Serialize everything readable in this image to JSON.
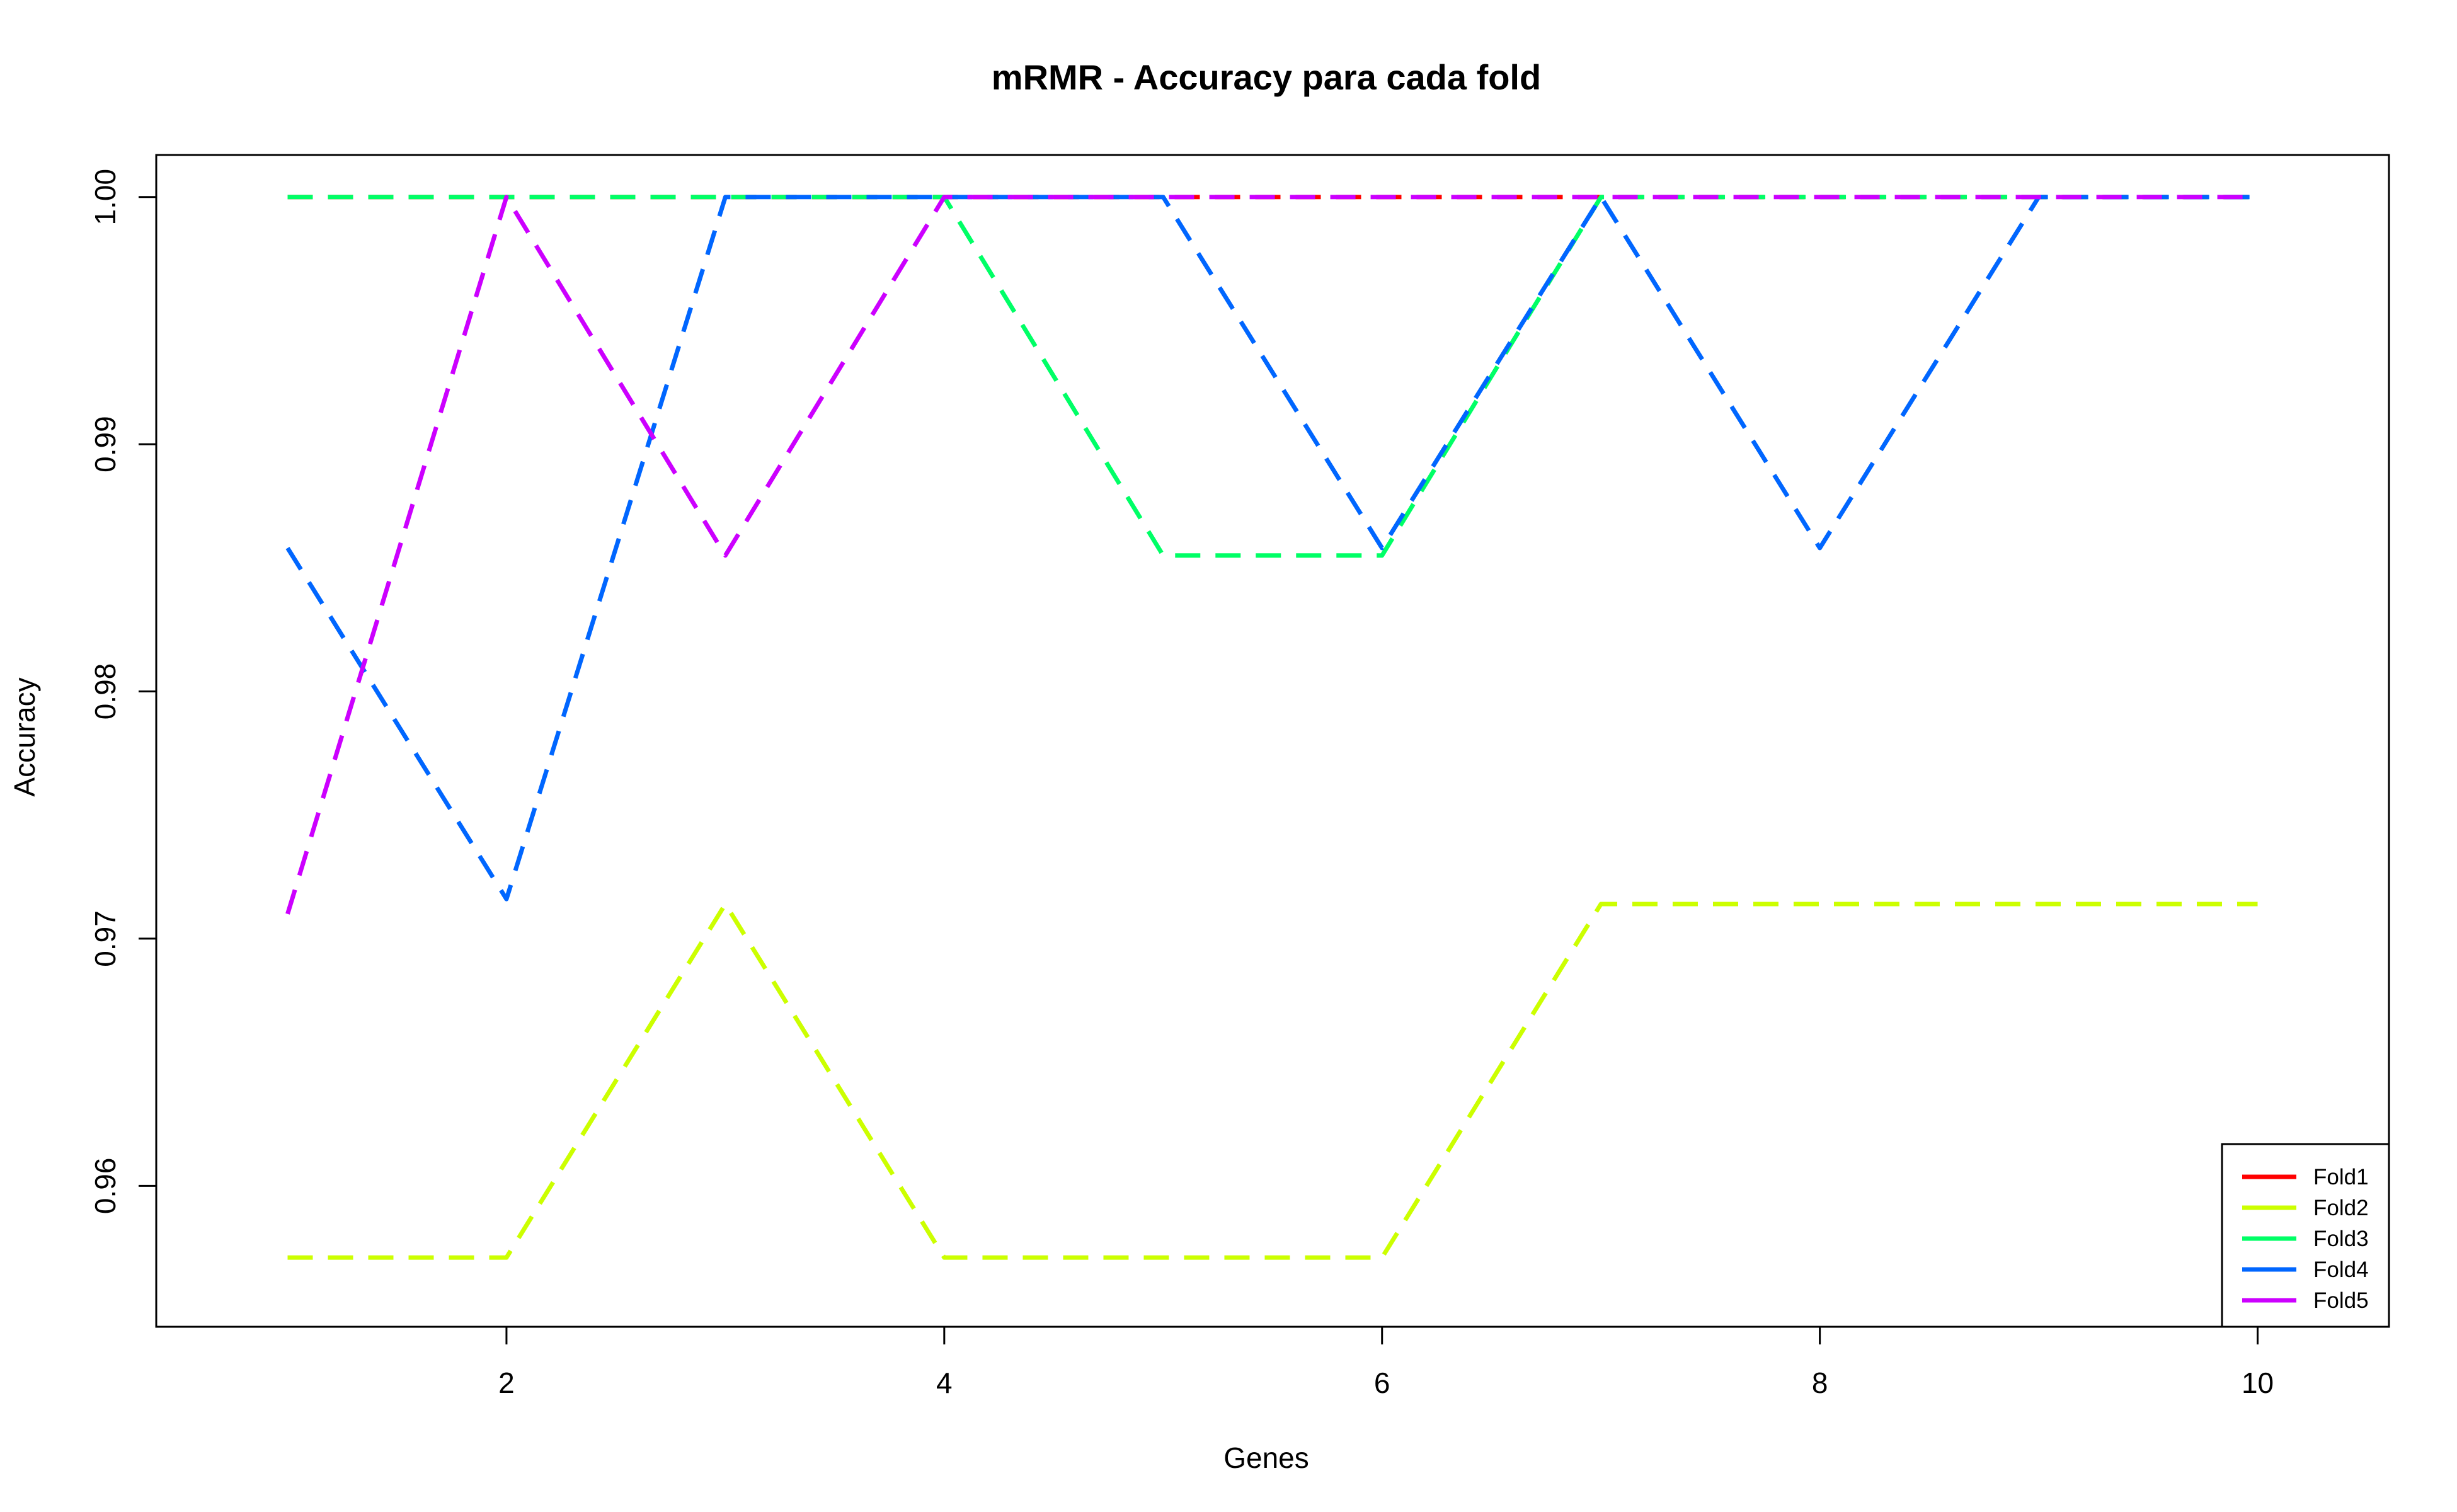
{
  "chart_data": {
    "type": "line",
    "title": "mRMR - Accuracy para cada fold",
    "xlabel": "Genes",
    "ylabel": "Accuracy",
    "x": [
      1,
      2,
      3,
      4,
      5,
      6,
      7,
      8,
      9,
      10
    ],
    "xlim": [
      0.4,
      10.6
    ],
    "ylim": [
      0.9543,
      1.0017
    ],
    "xticks": [
      2,
      4,
      6,
      8,
      10
    ],
    "xtick_labels": [
      "2",
      "4",
      "6",
      "8",
      "10"
    ],
    "yticks": [
      0.96,
      0.97,
      0.98,
      0.99,
      1.0
    ],
    "ytick_labels": [
      "0.96",
      "0.97",
      "0.98",
      "0.99",
      "1.00"
    ],
    "grid": false,
    "line_style": "dashed",
    "legend_position": "bottom-right",
    "series": [
      {
        "name": "Fold1",
        "color": "#FF0000",
        "values": [
          1.0,
          1.0,
          1.0,
          1.0,
          1.0,
          1.0,
          1.0,
          1.0,
          1.0,
          1.0
        ]
      },
      {
        "name": "Fold2",
        "color": "#CCFF00",
        "values": [
          0.9571,
          0.9571,
          0.9714,
          0.9571,
          0.9571,
          0.9571,
          0.9714,
          0.9714,
          0.9714,
          0.9714
        ]
      },
      {
        "name": "Fold3",
        "color": "#00FF66",
        "values": [
          1.0,
          1.0,
          1.0,
          1.0,
          0.9855,
          0.9855,
          1.0,
          1.0,
          1.0,
          1.0
        ]
      },
      {
        "name": "Fold4",
        "color": "#0066FF",
        "values": [
          0.9858,
          0.9716,
          1.0,
          1.0,
          1.0,
          0.9858,
          1.0,
          0.9858,
          1.0,
          1.0
        ]
      },
      {
        "name": "Fold5",
        "color": "#CC00FF",
        "values": [
          0.971,
          1.0,
          0.9855,
          1.0,
          1.0,
          1.0,
          1.0,
          1.0,
          1.0,
          1.0
        ]
      }
    ]
  }
}
